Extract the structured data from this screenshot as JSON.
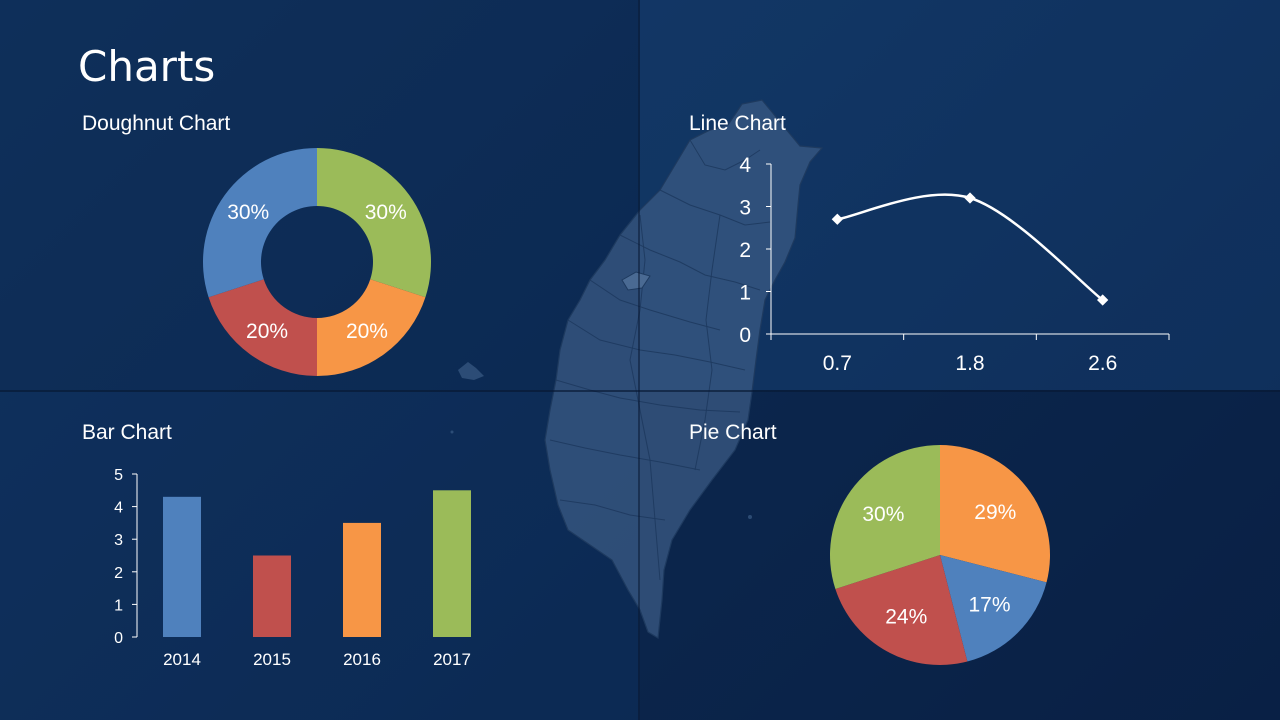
{
  "page": {
    "title": "Charts",
    "colors": {
      "blue": "#4f81bd",
      "red": "#c0504d",
      "orange": "#f79646",
      "green": "#9bbb59",
      "background": "#0f2f58"
    },
    "decoration": "taiwan-map-silhouette"
  },
  "chart_data": [
    {
      "id": "doughnut",
      "type": "doughnut",
      "title": "Doughnut Chart",
      "slices": [
        {
          "value": 30,
          "label": "30%",
          "color": "#9bbb59"
        },
        {
          "value": 20,
          "label": "20%",
          "color": "#f79646"
        },
        {
          "value": 20,
          "label": "20%",
          "color": "#c0504d"
        },
        {
          "value": 30,
          "label": "30%",
          "color": "#4f81bd"
        }
      ]
    },
    {
      "id": "line",
      "type": "line",
      "title": "Line Chart",
      "categories": [
        "0.7",
        "1.8",
        "2.6"
      ],
      "values": [
        2.7,
        3.2,
        0.8
      ],
      "ylim": [
        0,
        4
      ],
      "yticks": [
        0,
        1,
        2,
        3,
        4
      ],
      "color": "#ffffff",
      "smooth": true
    },
    {
      "id": "bar",
      "type": "bar",
      "title": "Bar Chart",
      "categories": [
        "2014",
        "2015",
        "2016",
        "2017"
      ],
      "values": [
        4.3,
        2.5,
        3.5,
        4.5
      ],
      "colors": [
        "#4f81bd",
        "#c0504d",
        "#f79646",
        "#9bbb59"
      ],
      "ylim": [
        0,
        5
      ],
      "yticks": [
        0,
        1,
        2,
        3,
        4,
        5
      ]
    },
    {
      "id": "pie",
      "type": "pie",
      "title": "Pie Chart",
      "slices": [
        {
          "value": 29,
          "label": "29%",
          "color": "#f79646"
        },
        {
          "value": 17,
          "label": "17%",
          "color": "#4f81bd"
        },
        {
          "value": 24,
          "label": "24%",
          "color": "#c0504d"
        },
        {
          "value": 30,
          "label": "30%",
          "color": "#9bbb59"
        }
      ]
    }
  ]
}
